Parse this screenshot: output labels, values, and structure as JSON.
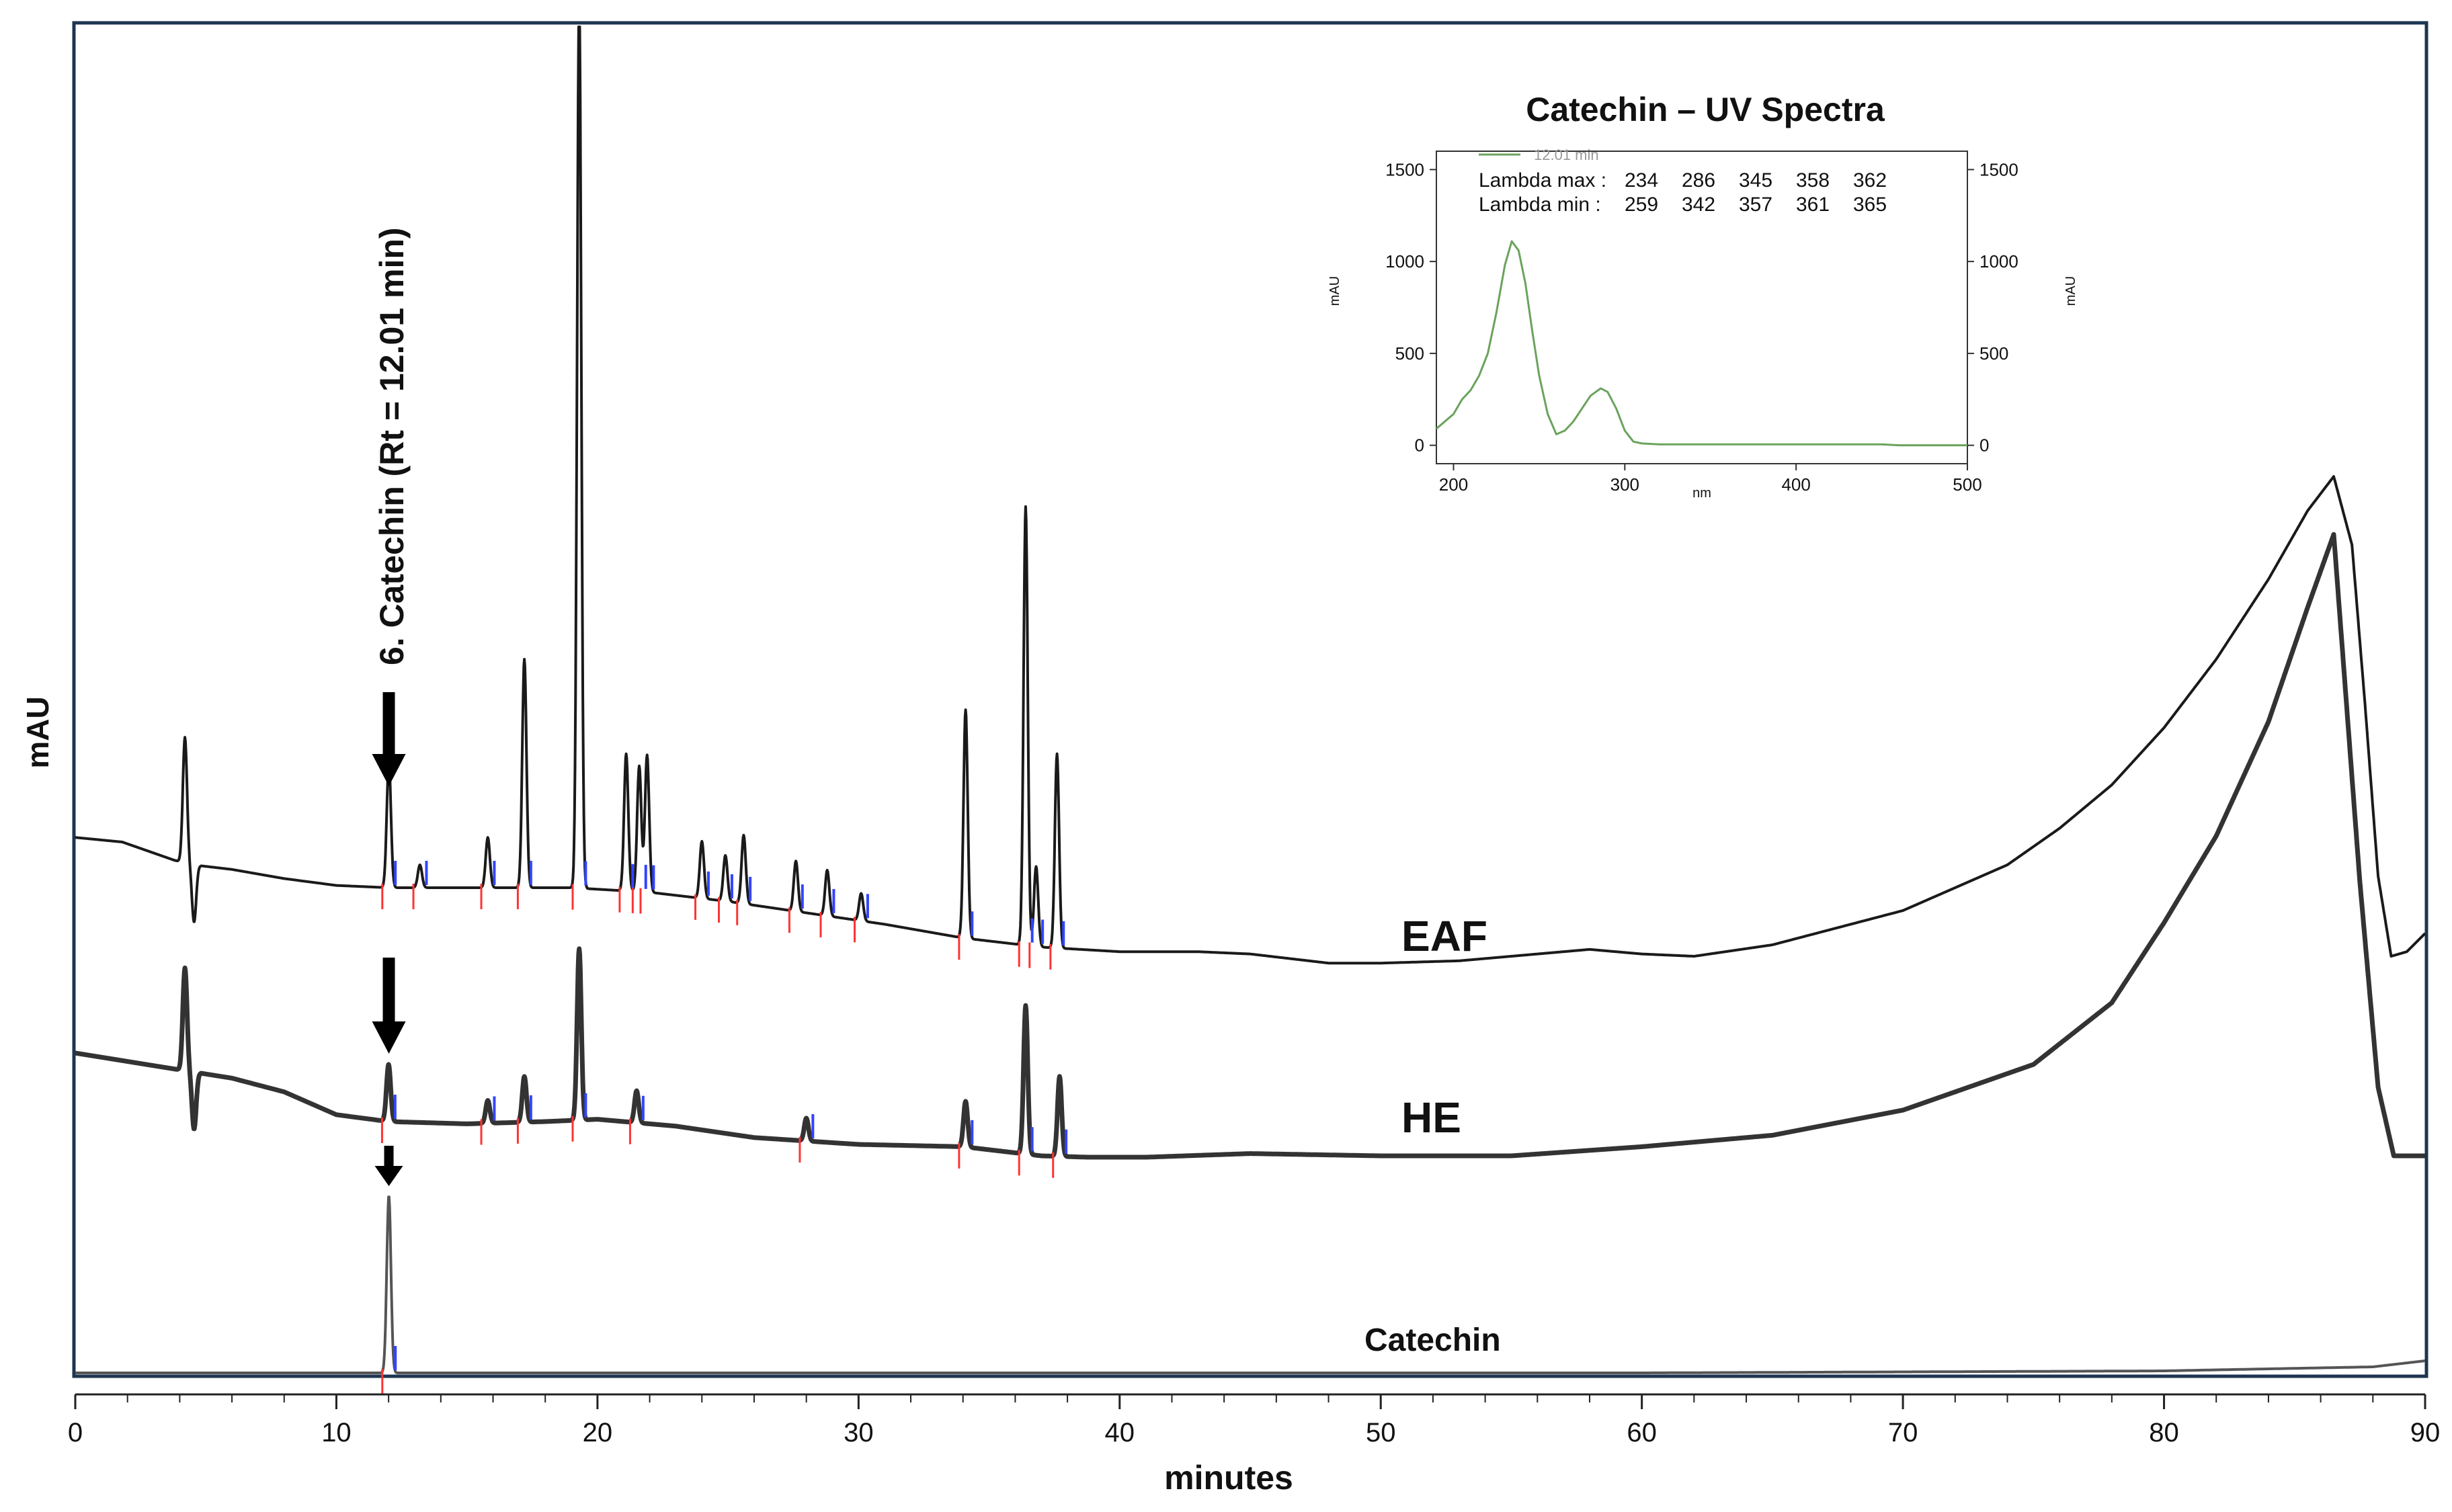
{
  "colors": {
    "trace": "#1a1a1a",
    "he_trace": "#333333",
    "std_trace": "#555555",
    "inset_trace": "#6aa35c",
    "red_marker": "#ff3333",
    "blue_marker": "#3344ff",
    "frame": "#1d3550"
  },
  "chart_data": [
    {
      "type": "line",
      "title": "",
      "xlabel": "minutes",
      "ylabel": "mAU",
      "xlim": [
        0,
        90
      ],
      "x_ticks": [
        "0",
        "10",
        "20",
        "30",
        "40",
        "50",
        "60",
        "70",
        "80",
        "90"
      ],
      "legend": "none",
      "grid": false,
      "series": [
        {
          "name": "EAF",
          "baseline": [
            [
              0,
              0.62
            ],
            [
              1.8,
              0.6
            ],
            [
              3.8,
              0.52
            ],
            [
              4.5,
              0.5
            ],
            [
              6,
              0.48
            ],
            [
              8,
              0.44
            ],
            [
              10,
              0.41
            ],
            [
              12,
              0.4
            ],
            [
              15,
              0.4
            ],
            [
              17,
              0.4
            ],
            [
              19,
              0.4
            ],
            [
              22,
              0.38
            ],
            [
              25,
              0.34
            ],
            [
              28,
              0.29
            ],
            [
              31,
              0.24
            ],
            [
              34,
              0.18
            ],
            [
              37,
              0.14
            ],
            [
              40,
              0.12
            ],
            [
              43,
              0.12
            ],
            [
              45,
              0.11
            ],
            [
              48,
              0.07
            ],
            [
              50,
              0.07
            ],
            [
              53,
              0.08
            ],
            [
              55,
              0.1
            ],
            [
              58,
              0.13
            ],
            [
              60,
              0.11
            ],
            [
              62,
              0.1
            ],
            [
              65,
              0.15
            ],
            [
              68,
              0.24
            ],
            [
              70,
              0.3
            ],
            [
              72,
              0.4
            ],
            [
              74,
              0.5
            ],
            [
              76,
              0.66
            ],
            [
              78,
              0.85
            ],
            [
              80,
              1.1
            ],
            [
              82,
              1.4
            ],
            [
              84,
              1.75
            ],
            [
              85.5,
              2.05
            ],
            [
              86.5,
              2.2
            ],
            [
              87.2,
              1.9
            ],
            [
              87.7,
              1.2
            ],
            [
              88.2,
              0.45
            ],
            [
              88.7,
              0.1
            ],
            [
              89.3,
              0.12
            ],
            [
              90,
              0.2
            ]
          ],
          "peaks": [
            {
              "rt": 4.2,
              "height": 0.55
            },
            {
              "rt": 12.01,
              "height": 0.55,
              "label": "6. Catechin (Rt = 12.01 min)"
            },
            {
              "rt": 13.2,
              "height": 0.1
            },
            {
              "rt": 15.8,
              "height": 0.22
            },
            {
              "rt": 17.2,
              "height": 1.0
            },
            {
              "rt": 19.3,
              "height": 3.9
            },
            {
              "rt": 21.1,
              "height": 0.6
            },
            {
              "rt": 21.6,
              "height": 0.55
            },
            {
              "rt": 21.9,
              "height": 0.6
            },
            {
              "rt": 24.0,
              "height": 0.25
            },
            {
              "rt": 24.9,
              "height": 0.2
            },
            {
              "rt": 25.6,
              "height": 0.3
            },
            {
              "rt": 27.6,
              "height": 0.22
            },
            {
              "rt": 28.8,
              "height": 0.2
            },
            {
              "rt": 30.1,
              "height": 0.12
            },
            {
              "rt": 34.1,
              "height": 1.0
            },
            {
              "rt": 36.4,
              "height": 1.92
            },
            {
              "rt": 36.8,
              "height": 0.35
            },
            {
              "rt": 37.6,
              "height": 0.85
            }
          ]
        },
        {
          "name": "HE",
          "baseline": [
            [
              0,
              0.45
            ],
            [
              3.8,
              0.38
            ],
            [
              6,
              0.34
            ],
            [
              8,
              0.28
            ],
            [
              10,
              0.18
            ],
            [
              12,
              0.15
            ],
            [
              15,
              0.14
            ],
            [
              18,
              0.15
            ],
            [
              20,
              0.16
            ],
            [
              23,
              0.13
            ],
            [
              26,
              0.08
            ],
            [
              30,
              0.05
            ],
            [
              34,
              0.04
            ],
            [
              37,
              0.0
            ],
            [
              40,
              -0.01
            ],
            [
              45,
              0.01
            ],
            [
              50,
              0.0
            ],
            [
              55,
              0.0
            ],
            [
              60,
              0.04
            ],
            [
              65,
              0.09
            ],
            [
              70,
              0.2
            ],
            [
              75,
              0.4
            ],
            [
              78,
              0.67
            ],
            [
              80,
              1.02
            ],
            [
              82,
              1.4
            ],
            [
              84,
              1.9
            ],
            [
              85.5,
              2.4
            ],
            [
              86.5,
              2.72
            ],
            [
              87.5,
              1.2
            ],
            [
              88.2,
              0.3
            ],
            [
              88.8,
              0.0
            ],
            [
              90,
              0.0
            ]
          ],
          "peaks": [
            {
              "rt": 4.2,
              "height": 0.45
            },
            {
              "rt": 12.0,
              "height": 0.25
            },
            {
              "rt": 15.8,
              "height": 0.1
            },
            {
              "rt": 17.2,
              "height": 0.2
            },
            {
              "rt": 19.3,
              "height": 0.75
            },
            {
              "rt": 21.5,
              "height": 0.14
            },
            {
              "rt": 28.0,
              "height": 0.1
            },
            {
              "rt": 34.1,
              "height": 0.2
            },
            {
              "rt": 36.4,
              "height": 0.65
            },
            {
              "rt": 37.7,
              "height": 0.35
            }
          ]
        },
        {
          "name": "Catechin",
          "baseline": [
            [
              0,
              0.0
            ],
            [
              10,
              0.0
            ],
            [
              40,
              0.0
            ],
            [
              60,
              0.0
            ],
            [
              80,
              0.01
            ],
            [
              88,
              0.03
            ],
            [
              90,
              0.06
            ]
          ],
          "peaks": [
            {
              "rt": 12.01,
              "height": 0.88
            }
          ]
        }
      ],
      "annotations": [
        {
          "text": "6. Catechin (Rt = 12.01 min)",
          "x": 12.01
        },
        {
          "text": "EAF"
        },
        {
          "text": "HE"
        },
        {
          "text": "Catechin"
        }
      ]
    },
    {
      "type": "line",
      "title": "Catechin – UV Spectra",
      "xlabel": "nm",
      "ylabel": "mAU",
      "xlim": [
        190,
        500
      ],
      "ylim": [
        -100,
        1600
      ],
      "x_ticks": [
        "200",
        "300",
        "400",
        "500"
      ],
      "y_ticks": [
        "0",
        "500",
        "1000",
        "1500"
      ],
      "legend": "top-left",
      "grid": false,
      "series": [
        {
          "name": "12.01 min",
          "x": [
            190,
            200,
            205,
            210,
            215,
            220,
            225,
            230,
            234,
            238,
            242,
            246,
            250,
            255,
            260,
            265,
            270,
            275,
            280,
            286,
            290,
            295,
            300,
            305,
            310,
            320,
            350,
            400,
            450,
            460,
            480,
            500
          ],
          "y": [
            90,
            170,
            250,
            300,
            380,
            500,
            720,
            980,
            1110,
            1060,
            880,
            620,
            380,
            170,
            60,
            80,
            130,
            200,
            270,
            310,
            290,
            200,
            80,
            20,
            10,
            5,
            5,
            5,
            5,
            0,
            0,
            0
          ]
        }
      ],
      "legend_table": {
        "rows": [
          {
            "label": "Lambda max :",
            "values": [
              "234",
              "286",
              "345",
              "358",
              "362"
            ]
          },
          {
            "label": "Lambda min  :",
            "values": [
              "259",
              "342",
              "357",
              "361",
              "365"
            ]
          }
        ]
      }
    }
  ]
}
